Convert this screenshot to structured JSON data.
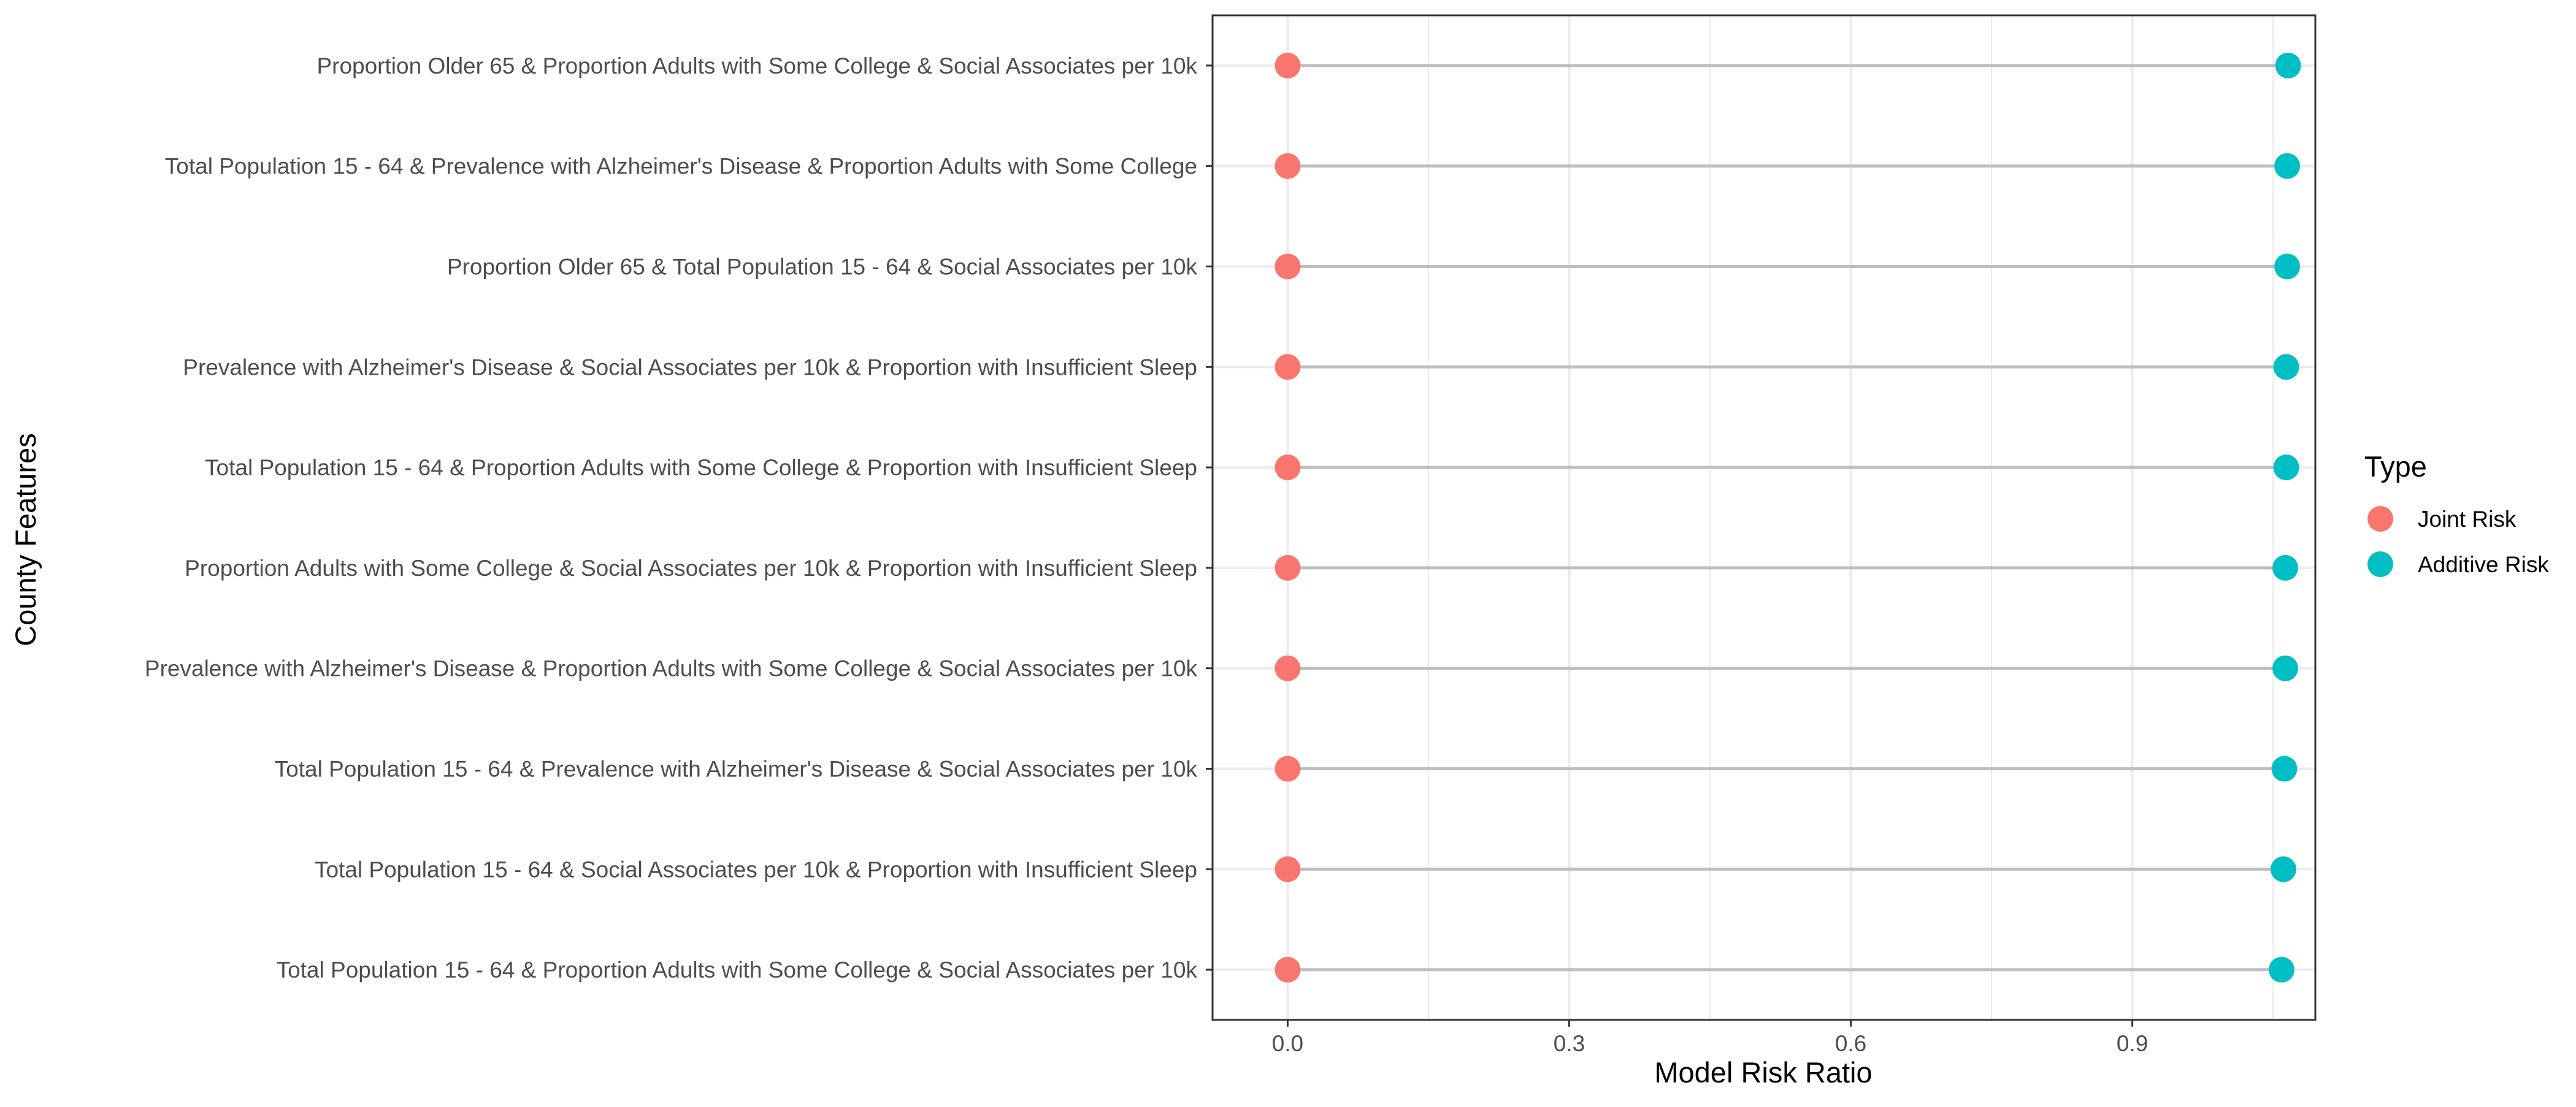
{
  "chart_data": {
    "type": "dumbbell",
    "xlabel": "Model Risk Ratio",
    "ylabel": "County Features",
    "xlim": [
      -0.08,
      1.095
    ],
    "xticks": [
      0.0,
      0.3,
      0.6,
      0.9
    ],
    "xtick_labels": [
      "0.0",
      "0.3",
      "0.6",
      "0.9"
    ],
    "grid": true,
    "legend": {
      "title": "Type",
      "placement": "right",
      "entries": [
        {
          "label": "Joint Risk",
          "color": "#F8766D"
        },
        {
          "label": "Additive Risk",
          "color": "#00BFC4"
        }
      ]
    },
    "categories": [
      "Proportion Older 65 & Proportion Adults with Some College & Social Associates per 10k",
      "Total Population 15 - 64 & Prevalence with Alzheimer's Disease & Proportion Adults with Some College",
      "Proportion Older 65 & Total Population 15 - 64 & Social Associates per 10k",
      "Prevalence with Alzheimer's Disease & Social Associates per 10k & Proportion with Insufficient Sleep",
      "Total Population 15 - 64 & Proportion Adults with Some College & Proportion with Insufficient Sleep",
      "Proportion Adults with Some College & Social Associates per 10k & Proportion with Insufficient Sleep",
      "Prevalence with Alzheimer's Disease & Proportion Adults with Some College & Social Associates per 10k",
      "Total Population 15 - 64 & Prevalence with Alzheimer's Disease & Social Associates per 10k",
      "Total Population 15 - 64 & Social Associates per 10k & Proportion with Insufficient Sleep",
      "Total Population 15 - 64 & Proportion Adults with Some College & Social Associates per 10k"
    ],
    "series": [
      {
        "name": "Joint Risk",
        "color": "#F8766D",
        "values": [
          0.0,
          0.0,
          0.0,
          0.0,
          0.0,
          0.0,
          0.0,
          0.0,
          0.0,
          0.0
        ]
      },
      {
        "name": "Additive Risk",
        "color": "#00BFC4",
        "values": [
          1.066,
          1.065,
          1.065,
          1.064,
          1.064,
          1.063,
          1.063,
          1.062,
          1.061,
          1.059
        ]
      }
    ]
  }
}
